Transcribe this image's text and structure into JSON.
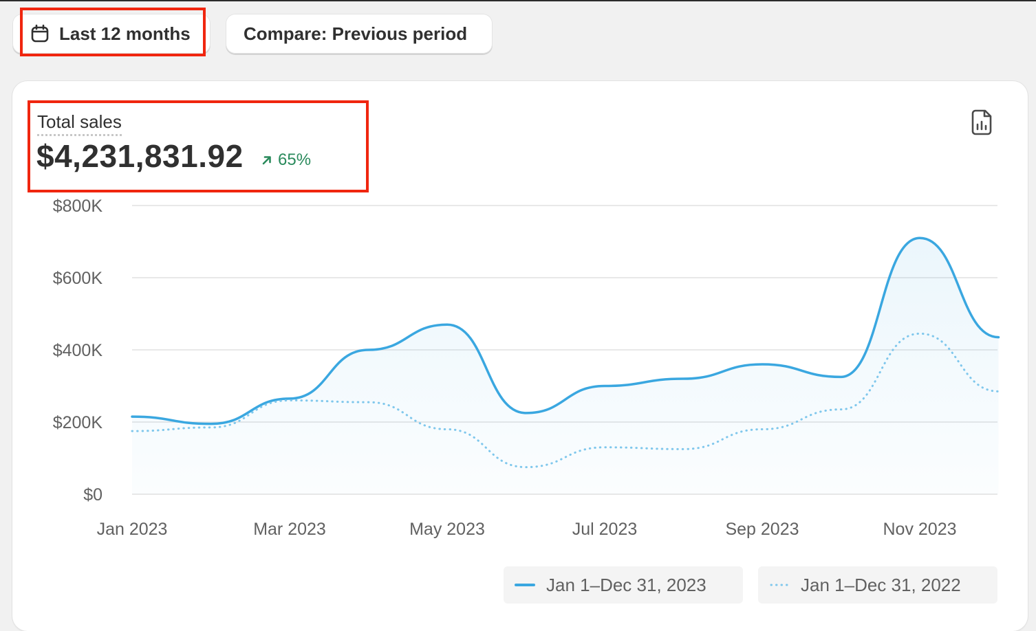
{
  "filters": {
    "date_range_label": "Last 12 months",
    "compare_label": "Compare: Previous period"
  },
  "metric": {
    "label": "Total sales",
    "value": "$4,231,831.92",
    "change": "65%",
    "change_direction": "up",
    "change_color": "#2a8a5c"
  },
  "icons": {
    "date_range": "calendar-icon",
    "change": "arrow-up-right-icon",
    "export": "export-report-icon"
  },
  "chart_data": {
    "type": "line",
    "title": "",
    "xlabel": "",
    "ylabel": "",
    "x": [
      "Jan 2023",
      "Feb 2023",
      "Mar 2023",
      "Apr 2023",
      "May 2023",
      "Jun 2023",
      "Jul 2023",
      "Aug 2023",
      "Sep 2023",
      "Oct 2023",
      "Nov 2023",
      "Dec 2023"
    ],
    "xticks": [
      "Jan 2023",
      "Mar 2023",
      "May 2023",
      "Jul 2023",
      "Sep 2023",
      "Nov 2023"
    ],
    "yticks": [
      "$0",
      "$200K",
      "$400K",
      "$600K",
      "$800K"
    ],
    "ylim": [
      0,
      800000
    ],
    "grid": true,
    "legend_position": "bottom-right",
    "series": [
      {
        "name": "Jan 1–Dec 31, 2023",
        "style": "solid",
        "color": "#3aa7e0",
        "values": [
          215000,
          195000,
          265000,
          400000,
          470000,
          225000,
          300000,
          320000,
          360000,
          325000,
          710000,
          435000
        ]
      },
      {
        "name": "Jan 1–Dec 31, 2022",
        "style": "dotted",
        "color": "#7fc7ec",
        "values": [
          175000,
          185000,
          260000,
          255000,
          180000,
          75000,
          130000,
          125000,
          180000,
          235000,
          445000,
          285000
        ]
      }
    ]
  }
}
